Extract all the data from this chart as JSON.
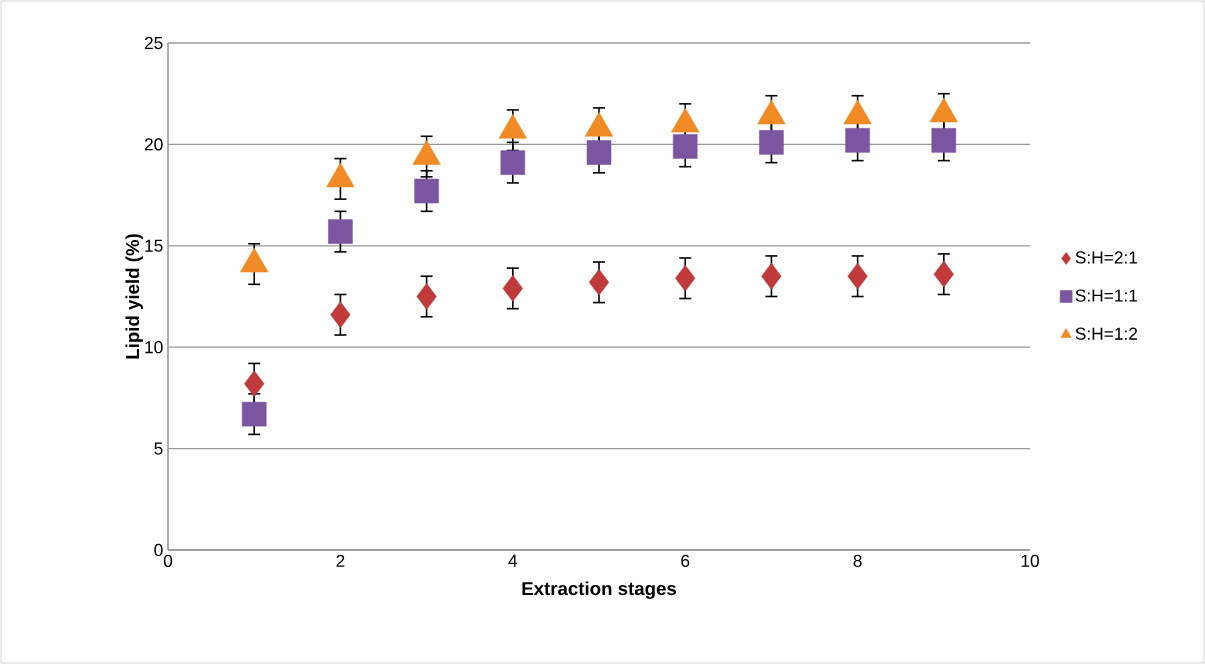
{
  "chart_data": {
    "type": "scatter",
    "xlabel": "Extraction stages",
    "ylabel": "Lipid yield (%)",
    "x": [
      1,
      2,
      3,
      4,
      5,
      6,
      7,
      8,
      9
    ],
    "series": [
      {
        "name": "S:H=2:1",
        "color": "#c0393b",
        "marker": "diamond",
        "values": [
          8.2,
          11.6,
          12.5,
          12.9,
          13.2,
          13.4,
          13.5,
          13.5,
          13.6
        ],
        "errors": [
          1,
          1,
          1,
          1,
          1,
          1,
          1,
          1,
          1
        ]
      },
      {
        "name": "S:H=1:1",
        "color": "#7b55a0",
        "marker": "square",
        "values": [
          6.7,
          15.7,
          17.7,
          19.1,
          19.6,
          19.9,
          20.1,
          20.2,
          20.2
        ],
        "errors": [
          1,
          1,
          1,
          1,
          1,
          1,
          1,
          1,
          1
        ]
      },
      {
        "name": "S:H=1:2",
        "color": "#f08a24",
        "marker": "triangle",
        "values": [
          14.1,
          18.3,
          19.4,
          20.7,
          20.8,
          21.0,
          21.4,
          21.4,
          21.5
        ],
        "errors": [
          1,
          1,
          1,
          1,
          1,
          1,
          1,
          1,
          1
        ]
      }
    ],
    "xlim": [
      0,
      10
    ],
    "xticks": [
      0,
      2,
      4,
      6,
      8,
      10
    ],
    "ylim": [
      0,
      25
    ],
    "yticks": [
      0,
      5,
      10,
      15,
      20,
      25
    ],
    "grid": "y",
    "legend": "right"
  }
}
